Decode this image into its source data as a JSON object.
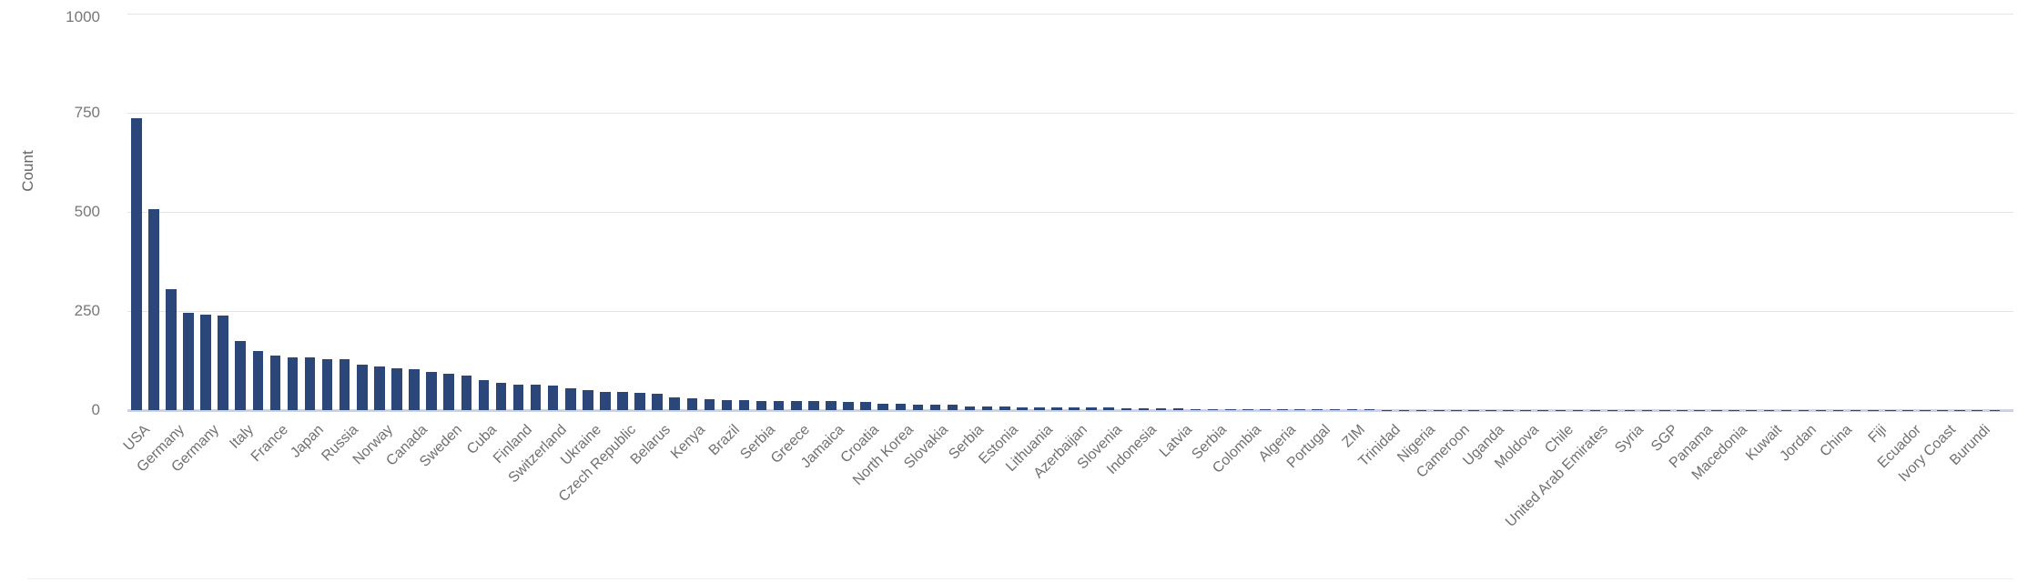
{
  "chart_data": {
    "type": "bar",
    "title": "",
    "xlabel": "",
    "ylabel": "Count",
    "ylim": [
      0,
      1000
    ],
    "yticks": [
      0,
      250,
      500,
      750,
      1000
    ],
    "grid": "horizontal",
    "legend": "none",
    "bar_color": "#2b4678",
    "grid_color": "#e5e5e5",
    "axis_line_color": "#cbd3e3",
    "tick_text_color": "#787878",
    "x_label_rotation_deg": 45,
    "x_tick_every_nth_bar": 2,
    "categories": [
      "USA",
      "Germany",
      "Germany",
      "Italy",
      "France",
      "Japan",
      "Russia",
      "Norway",
      "Canada",
      "Sweden",
      "Cuba",
      "Finland",
      "Switzerland",
      "Ukraine",
      "Czech Republic",
      "Belarus",
      "Kenya",
      "Brazil",
      "Serbia",
      "Greece",
      "Jamaica",
      "Croatia",
      "North Korea",
      "Slovakia",
      "Serbia",
      "Estonia",
      "Lithuania",
      "Azerbaijan",
      "Slovenia",
      "Indonesia",
      "Latvia",
      "Serbia",
      "Colombia",
      "Algeria",
      "Portugal",
      "ZIM",
      "Trinidad",
      "Nigeria",
      "Cameroon",
      "Uganda",
      "Moldova",
      "Chile",
      "United Arab Emirates",
      "Syria",
      "SGP",
      "Panama",
      "Macedonia",
      "Kuwait",
      "Jordan",
      "China",
      "Fiji",
      "Ecuador",
      "Ivory Coast",
      "Burundi"
    ],
    "values": [
      737,
      507,
      305,
      245,
      240,
      239,
      174,
      148,
      137,
      133,
      132,
      129,
      128,
      114,
      111,
      106,
      103,
      97,
      92,
      88,
      75,
      68,
      65,
      64,
      63,
      55,
      50,
      46,
      45,
      44,
      41,
      31,
      30,
      27,
      26,
      25,
      24,
      23,
      23,
      23,
      22,
      21,
      20,
      16,
      15,
      14,
      13,
      13,
      10,
      9,
      9,
      8,
      8,
      7,
      7,
      6,
      6,
      5,
      5,
      4,
      4,
      3,
      3,
      3,
      3,
      3,
      2,
      2,
      2,
      2,
      2,
      2,
      1,
      1,
      1,
      1,
      1,
      1,
      1,
      1,
      1,
      1,
      1,
      1,
      1,
      1,
      1,
      1,
      1,
      1,
      1,
      1,
      1,
      1,
      1,
      1,
      1,
      1,
      1,
      1,
      1,
      1,
      1,
      1,
      1,
      1,
      1,
      1
    ],
    "note": "Every second bar carries an x-axis label; categories[j] labels bar index 2*j (0-based). values holds all 108 bars left to right."
  }
}
